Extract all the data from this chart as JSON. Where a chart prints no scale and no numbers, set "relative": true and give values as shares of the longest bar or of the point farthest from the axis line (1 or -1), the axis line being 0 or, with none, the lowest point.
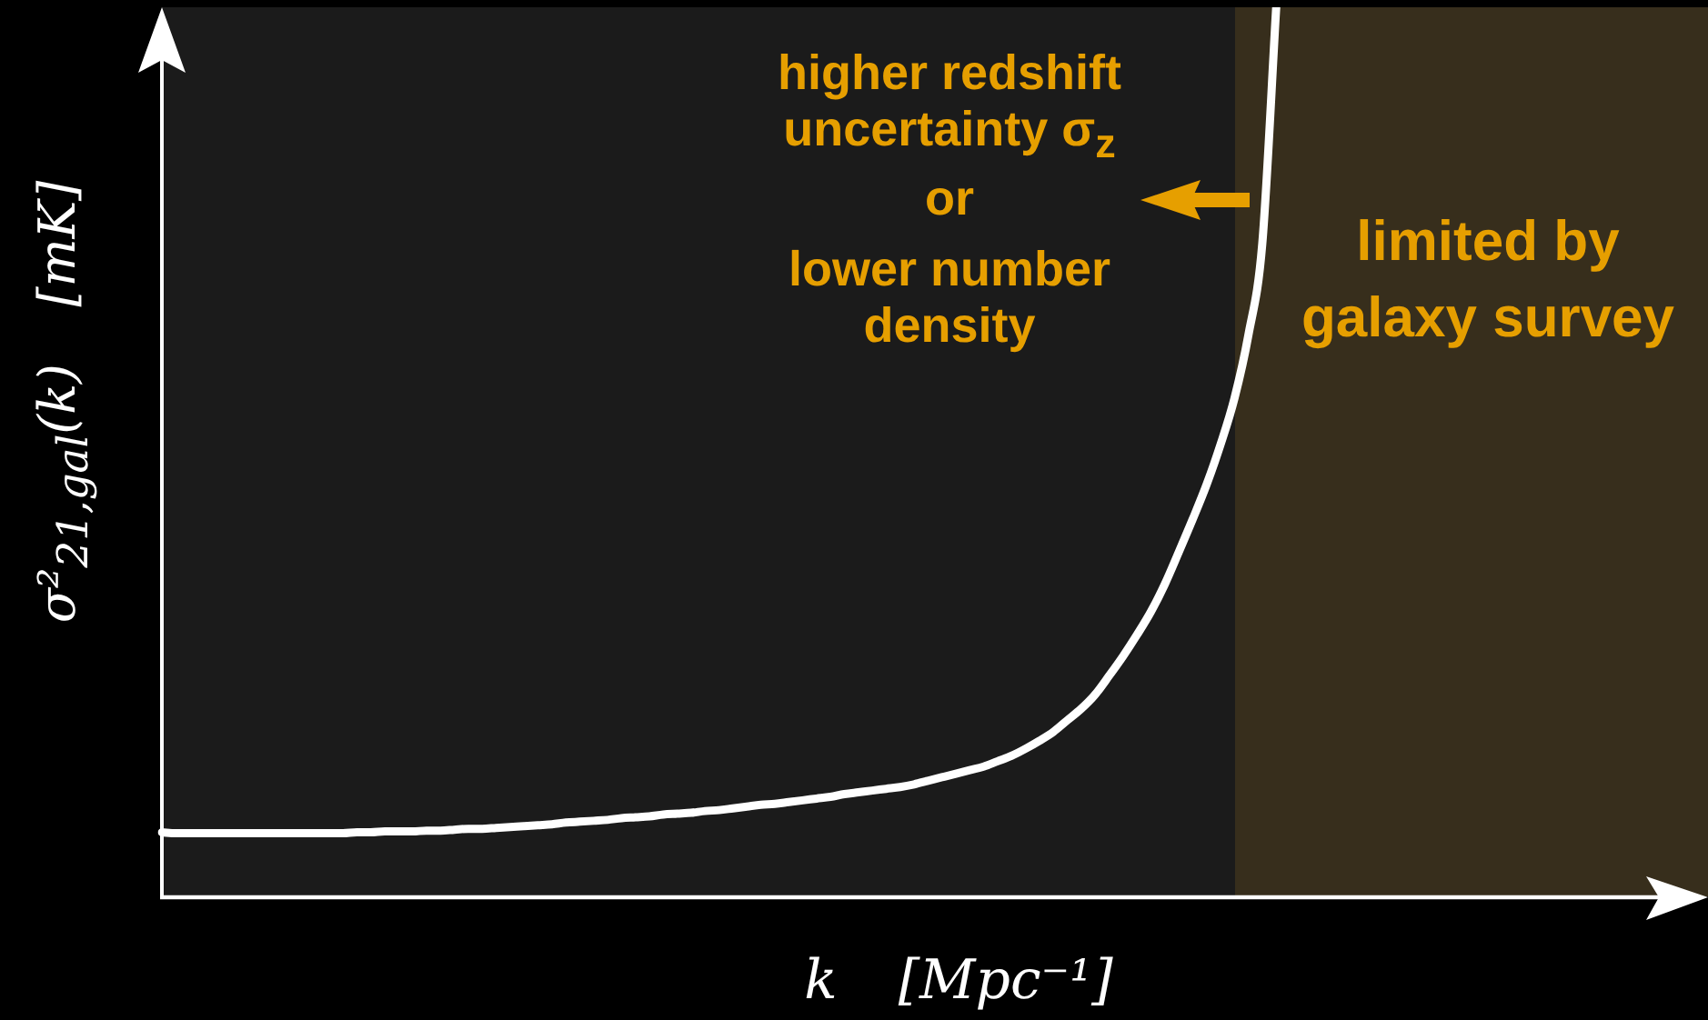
{
  "chart_data": {
    "type": "line",
    "xlabel": "k [Mpc⁻¹]",
    "ylabel": "σ²$_{21,gal}$(k) [mK]",
    "categories": [
      null,
      null,
      null,
      null,
      null,
      null,
      null,
      null,
      null,
      null,
      null,
      null,
      null,
      null,
      null,
      null,
      null,
      null,
      null,
      null,
      null,
      null,
      null,
      null,
      null,
      null,
      null,
      null,
      null,
      null,
      null,
      null,
      null,
      null,
      null,
      null,
      null,
      null,
      null,
      null,
      null,
      null,
      null,
      null,
      null,
      null,
      null,
      null,
      null,
      null,
      null,
      null,
      null,
      null,
      null,
      null,
      null,
      null,
      null,
      null,
      null,
      null,
      null,
      null,
      null,
      null,
      null,
      null,
      null,
      null,
      null,
      null,
      null,
      null,
      null,
      null,
      null,
      null,
      null,
      null,
      null,
      null,
      null,
      null,
      null,
      null,
      null,
      null,
      null,
      null,
      null,
      null,
      null,
      null,
      null,
      null,
      null,
      null,
      null,
      null,
      null,
      null,
      null,
      null,
      null,
      null,
      null,
      null,
      null,
      null,
      null,
      null
    ],
    "values": [
      0.072,
      0.071,
      0.071,
      0.071,
      0.071,
      0.071,
      0.071,
      0.071,
      0.071,
      0.071,
      0.071,
      0.071,
      0.071,
      0.071,
      0.072,
      0.072,
      0.073,
      0.073,
      0.073,
      0.074,
      0.074,
      0.075,
      0.076,
      0.076,
      0.077,
      0.078,
      0.079,
      0.08,
      0.081,
      0.083,
      0.084,
      0.085,
      0.086,
      0.088,
      0.089,
      0.09,
      0.092,
      0.093,
      0.094,
      0.096,
      0.097,
      0.099,
      0.101,
      0.103,
      0.104,
      0.106,
      0.108,
      0.11,
      0.112,
      0.115,
      0.117,
      0.119,
      0.121,
      0.123,
      0.126,
      0.13,
      0.134,
      0.138,
      0.142,
      0.146,
      0.152,
      0.158,
      0.166,
      0.175,
      0.185,
      0.198,
      0.211,
      0.227,
      0.248,
      0.27,
      0.294,
      0.32,
      0.351,
      0.387,
      0.424,
      0.463,
      0.508,
      0.56,
      0.631,
      0.734,
      1,
      null,
      null,
      null,
      null,
      null,
      null,
      null,
      null,
      null,
      null,
      null,
      null,
      null,
      null,
      null,
      null,
      null,
      null,
      null,
      null,
      null,
      null,
      null,
      null,
      null,
      null,
      null,
      null,
      null,
      null,
      null
    ],
    "color": "#ffffff",
    "relative": true,
    "tick_labels": false,
    "annotations": [
      "higher redshift uncertainty σ$_{z}$",
      "or",
      "lower number density",
      "limited by galaxy survey"
    ]
  }
}
